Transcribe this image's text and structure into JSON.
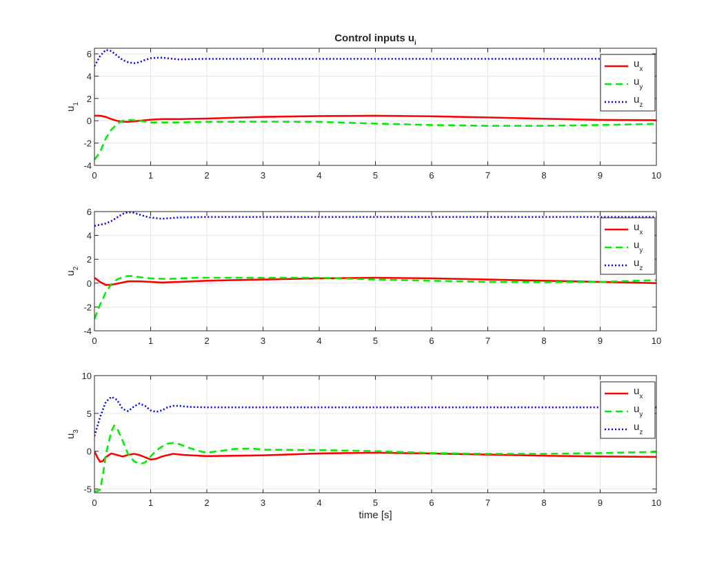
{
  "chart_data": [
    {
      "type": "line",
      "title": "Control inputs u",
      "title_sub": "i",
      "ylabel": "u",
      "ylabel_sub": "1",
      "xlabel": "",
      "xlim": [
        0,
        10
      ],
      "ylim": [
        -4,
        6.5
      ],
      "xticks": [
        "0",
        "1",
        "2",
        "3",
        "4",
        "5",
        "6",
        "7",
        "8",
        "9",
        "10"
      ],
      "yticks": [
        {
          "v": -4,
          "t": "-4"
        },
        {
          "v": -2,
          "t": "-2"
        },
        {
          "v": 0,
          "t": "0"
        },
        {
          "v": 2,
          "t": "2"
        },
        {
          "v": 4,
          "t": "4"
        },
        {
          "v": 6,
          "t": "6"
        }
      ],
      "grid": true,
      "legend_position": "top-right",
      "series": [
        {
          "name": "u",
          "sub": "x",
          "color": "#ff0000",
          "dash": "solid",
          "x": [
            0,
            0.1,
            0.2,
            0.3,
            0.4,
            0.5,
            0.6,
            0.7,
            0.8,
            0.9,
            1,
            1.2,
            1.5,
            2,
            3,
            4,
            5,
            6,
            7,
            8,
            9,
            10
          ],
          "y": [
            0.45,
            0.45,
            0.35,
            0.15,
            0.0,
            -0.08,
            -0.1,
            -0.05,
            0.0,
            0.05,
            0.1,
            0.15,
            0.15,
            0.2,
            0.35,
            0.42,
            0.45,
            0.4,
            0.3,
            0.18,
            0.08,
            0.05
          ]
        },
        {
          "name": "u",
          "sub": "y",
          "color": "#00ee00",
          "dash": "dashed",
          "x": [
            0,
            0.1,
            0.2,
            0.3,
            0.4,
            0.5,
            0.6,
            0.7,
            0.8,
            1,
            1.5,
            2,
            3,
            4,
            5,
            6,
            7,
            8,
            9,
            10
          ],
          "y": [
            -3.5,
            -2.8,
            -1.6,
            -0.8,
            -0.3,
            0.0,
            0.08,
            0.05,
            0.0,
            -0.15,
            -0.15,
            -0.1,
            -0.08,
            -0.1,
            -0.25,
            -0.38,
            -0.45,
            -0.45,
            -0.38,
            -0.28
          ]
        },
        {
          "name": "u",
          "sub": "z",
          "color": "#0000ff",
          "dash": "dotted",
          "x": [
            0,
            0.1,
            0.2,
            0.3,
            0.4,
            0.5,
            0.6,
            0.7,
            0.8,
            0.9,
            1,
            1.1,
            1.2,
            1.5,
            2,
            3,
            4,
            5,
            6,
            7,
            8,
            9,
            10
          ],
          "y": [
            4.9,
            5.8,
            6.35,
            6.25,
            5.85,
            5.45,
            5.25,
            5.15,
            5.25,
            5.45,
            5.6,
            5.65,
            5.65,
            5.5,
            5.55,
            5.55,
            5.55,
            5.55,
            5.55,
            5.55,
            5.55,
            5.55,
            5.55
          ]
        }
      ]
    },
    {
      "type": "line",
      "title": "",
      "ylabel": "u",
      "ylabel_sub": "2",
      "xlabel": "",
      "xlim": [
        0,
        10
      ],
      "ylim": [
        -4,
        6
      ],
      "xticks": [
        "0",
        "1",
        "2",
        "3",
        "4",
        "5",
        "6",
        "7",
        "8",
        "9",
        "10"
      ],
      "yticks": [
        {
          "v": -4,
          "t": "-4"
        },
        {
          "v": -2,
          "t": "-2"
        },
        {
          "v": 0,
          "t": "0"
        },
        {
          "v": 2,
          "t": "2"
        },
        {
          "v": 4,
          "t": "4"
        },
        {
          "v": 6,
          "t": "6"
        }
      ],
      "grid": true,
      "legend_position": "top-right",
      "series": [
        {
          "name": "u",
          "sub": "x",
          "color": "#ff0000",
          "dash": "solid",
          "x": [
            0,
            0.1,
            0.2,
            0.3,
            0.4,
            0.5,
            0.6,
            0.8,
            1,
            1.2,
            1.5,
            2,
            3,
            4,
            5,
            6,
            7,
            8,
            9,
            10
          ],
          "y": [
            0.45,
            0.1,
            -0.15,
            -0.15,
            -0.05,
            0.05,
            0.15,
            0.15,
            0.1,
            0.05,
            0.1,
            0.2,
            0.3,
            0.4,
            0.45,
            0.4,
            0.3,
            0.2,
            0.1,
            0.0
          ]
        },
        {
          "name": "u",
          "sub": "y",
          "color": "#00ee00",
          "dash": "dashed",
          "x": [
            0,
            0.1,
            0.2,
            0.3,
            0.4,
            0.5,
            0.6,
            0.7,
            0.8,
            1,
            1.3,
            1.8,
            2.5,
            3,
            4,
            5,
            6,
            7,
            8,
            9,
            10
          ],
          "y": [
            -3.0,
            -1.8,
            -0.8,
            -0.1,
            0.3,
            0.5,
            0.6,
            0.58,
            0.5,
            0.4,
            0.35,
            0.45,
            0.45,
            0.45,
            0.45,
            0.3,
            0.2,
            0.1,
            0.08,
            0.1,
            0.25
          ]
        },
        {
          "name": "u",
          "sub": "z",
          "color": "#0000ff",
          "dash": "dotted",
          "x": [
            0,
            0.1,
            0.2,
            0.3,
            0.4,
            0.5,
            0.6,
            0.7,
            0.8,
            0.9,
            1,
            1.2,
            1.5,
            2,
            3,
            4,
            5,
            6,
            7,
            8,
            9,
            10
          ],
          "y": [
            4.8,
            4.9,
            5.0,
            5.2,
            5.5,
            5.8,
            5.95,
            5.9,
            5.75,
            5.6,
            5.5,
            5.4,
            5.5,
            5.55,
            5.55,
            5.55,
            5.55,
            5.55,
            5.55,
            5.55,
            5.55,
            5.55
          ]
        }
      ]
    },
    {
      "type": "line",
      "title": "",
      "ylabel": "u",
      "ylabel_sub": "3",
      "xlabel": "time [s]",
      "xlim": [
        0,
        10
      ],
      "ylim": [
        -5.5,
        10
      ],
      "xticks": [
        "0",
        "1",
        "2",
        "3",
        "4",
        "5",
        "6",
        "7",
        "8",
        "9",
        "10"
      ],
      "yticks": [
        {
          "v": -5,
          "t": "-5"
        },
        {
          "v": 0,
          "t": "0"
        },
        {
          "v": 5,
          "t": "5"
        },
        {
          "v": 10,
          "t": "10"
        }
      ],
      "grid": true,
      "legend_position": "top-right",
      "series": [
        {
          "name": "u",
          "sub": "x",
          "color": "#ff0000",
          "dash": "solid",
          "x": [
            0,
            0.05,
            0.1,
            0.15,
            0.2,
            0.3,
            0.4,
            0.5,
            0.6,
            0.7,
            0.8,
            0.9,
            1,
            1.1,
            1.2,
            1.4,
            1.6,
            2,
            3,
            4,
            5,
            6,
            7,
            8,
            9,
            10
          ],
          "y": [
            0,
            -0.8,
            -1.4,
            -1.3,
            -0.8,
            -0.3,
            -0.5,
            -0.7,
            -0.5,
            -0.35,
            -0.5,
            -0.8,
            -1.1,
            -1.0,
            -0.7,
            -0.35,
            -0.5,
            -0.65,
            -0.55,
            -0.3,
            -0.2,
            -0.3,
            -0.45,
            -0.6,
            -0.7,
            -0.75
          ]
        },
        {
          "name": "u",
          "sub": "y",
          "color": "#00ee00",
          "dash": "dashed",
          "x": [
            0,
            0.05,
            0.1,
            0.15,
            0.2,
            0.3,
            0.35,
            0.4,
            0.5,
            0.6,
            0.7,
            0.8,
            0.9,
            1,
            1.1,
            1.2,
            1.3,
            1.4,
            1.5,
            1.7,
            1.9,
            2,
            2.2,
            2.5,
            2.8,
            3,
            4,
            5,
            6,
            7,
            8,
            9,
            10
          ],
          "y": [
            -5.3,
            -5.3,
            -5.1,
            -3.2,
            -0.5,
            2.6,
            3.4,
            3.1,
            1.4,
            -0.4,
            -1.3,
            -1.7,
            -1.5,
            -0.7,
            0.1,
            0.6,
            1.0,
            1.1,
            0.95,
            0.4,
            -0.05,
            -0.2,
            0.0,
            0.3,
            0.35,
            0.2,
            0.15,
            0.0,
            -0.25,
            -0.35,
            -0.35,
            -0.25,
            -0.1
          ]
        },
        {
          "name": "u",
          "sub": "z",
          "color": "#0000ff",
          "dash": "dotted",
          "x": [
            0,
            0.1,
            0.2,
            0.3,
            0.4,
            0.5,
            0.6,
            0.7,
            0.8,
            0.9,
            1,
            1.1,
            1.2,
            1.3,
            1.4,
            1.5,
            1.7,
            2,
            3,
            4,
            5,
            6,
            7,
            8,
            9,
            10
          ],
          "y": [
            2.0,
            4.5,
            6.5,
            7.2,
            6.8,
            5.6,
            5.3,
            5.9,
            6.3,
            6.0,
            5.4,
            5.2,
            5.4,
            5.8,
            6.0,
            6.0,
            5.85,
            5.8,
            5.8,
            5.8,
            5.8,
            5.8,
            5.8,
            5.8,
            5.8,
            5.8
          ]
        }
      ]
    }
  ]
}
